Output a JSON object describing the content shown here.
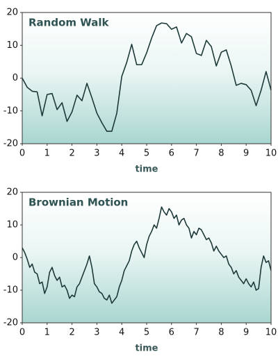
{
  "chart_data": [
    {
      "type": "line",
      "title": "Random Walk",
      "x_label": "time",
      "color": "#1d3838",
      "x": [
        0,
        0.2,
        0.4,
        0.6,
        0.8,
        1,
        1.2,
        1.4,
        1.6,
        1.8,
        2,
        2.2,
        2.4,
        2.6,
        2.8,
        3,
        3.2,
        3.4,
        3.6,
        3.8,
        4,
        4.2,
        4.4,
        4.6,
        4.8,
        5,
        5.2,
        5.4,
        5.6,
        5.8,
        6,
        6.2,
        6.4,
        6.6,
        6.8,
        7,
        7.2,
        7.4,
        7.6,
        7.8,
        8,
        8.2,
        8.4,
        8.6,
        8.8,
        9,
        9.2,
        9.4,
        9.6,
        9.8,
        10
      ],
      "values": [
        0,
        -2.8,
        -4,
        -4.2,
        -11.5,
        -5,
        -4.7,
        -9.6,
        -7.5,
        -13.2,
        -10.3,
        -5.2,
        -6.9,
        -1.6,
        -6,
        -10.7,
        -13.6,
        -16.2,
        -16.2,
        -10.7,
        0.5,
        4.8,
        10.3,
        4.1,
        4.1,
        7.7,
        12.2,
        16,
        16.8,
        16.6,
        14.9,
        15.6,
        10.7,
        13.6,
        12.6,
        7.5,
        6.9,
        11.5,
        9.6,
        3.7,
        7.9,
        8.6,
        3.7,
        -2.2,
        -1.6,
        -2,
        -3.7,
        -8.4,
        -3.7,
        2,
        -3.7
      ],
      "xlim": [
        0,
        10
      ],
      "ylim": [
        -20,
        20
      ],
      "xticks": [
        0,
        1,
        2,
        3,
        4,
        5,
        6,
        7,
        8,
        9,
        10
      ],
      "yticks": [
        -20,
        -10,
        0,
        10,
        20
      ]
    },
    {
      "type": "line",
      "title": "Brownian Motion",
      "x_label": "time",
      "color": "#1d3838",
      "x": [
        0,
        0.1,
        0.2,
        0.3,
        0.4,
        0.5,
        0.6,
        0.7,
        0.8,
        0.9,
        1,
        1.1,
        1.2,
        1.3,
        1.4,
        1.5,
        1.6,
        1.7,
        1.8,
        1.9,
        2,
        2.1,
        2.2,
        2.3,
        2.4,
        2.5,
        2.6,
        2.7,
        2.8,
        2.9,
        3,
        3.1,
        3.2,
        3.3,
        3.4,
        3.5,
        3.6,
        3.7,
        3.8,
        3.9,
        4,
        4.1,
        4.2,
        4.3,
        4.4,
        4.5,
        4.6,
        4.7,
        4.8,
        4.9,
        5,
        5.1,
        5.2,
        5.3,
        5.4,
        5.5,
        5.6,
        5.7,
        5.8,
        5.9,
        6,
        6.1,
        6.2,
        6.3,
        6.4,
        6.5,
        6.6,
        6.7,
        6.8,
        6.9,
        7,
        7.1,
        7.2,
        7.3,
        7.4,
        7.5,
        7.6,
        7.7,
        7.8,
        7.9,
        8,
        8.1,
        8.2,
        8.3,
        8.4,
        8.5,
        8.6,
        8.7,
        8.8,
        8.9,
        9,
        9.1,
        9.2,
        9.3,
        9.4,
        9.5,
        9.6,
        9.7,
        9.8,
        9.9,
        10
      ],
      "values": [
        3,
        1.5,
        -0.5,
        -3,
        -2,
        -4.5,
        -5,
        -8,
        -7.5,
        -11,
        -9,
        -4.5,
        -3,
        -5.5,
        -7,
        -6,
        -9,
        -8.5,
        -10,
        -12.5,
        -11.5,
        -12,
        -9,
        -8,
        -6,
        -4,
        -2,
        0.5,
        -3,
        -8,
        -9,
        -10.5,
        -11,
        -12.5,
        -13,
        -11.5,
        -14,
        -13,
        -12,
        -9,
        -7,
        -4,
        -2.5,
        -1,
        2,
        4,
        5,
        3,
        1.5,
        0,
        4,
        6.5,
        8,
        10,
        9,
        12,
        15.5,
        14,
        13,
        15,
        14,
        12,
        13,
        10,
        11.5,
        12,
        10,
        9,
        6,
        8,
        7,
        9,
        8.5,
        7,
        5.5,
        6,
        4.5,
        2,
        3.5,
        2,
        1,
        0,
        0.5,
        -2,
        -3,
        -5,
        -4,
        -6,
        -7,
        -8,
        -6.5,
        -8,
        -9,
        -7.5,
        -10,
        -9.5,
        -3,
        0.5,
        -1.5,
        -1,
        -4
      ],
      "xlim": [
        0,
        10
      ],
      "ylim": [
        -20,
        20
      ],
      "xticks": [
        0,
        1,
        2,
        3,
        4,
        5,
        6,
        7,
        8,
        9,
        10
      ],
      "yticks": [
        -20,
        -10,
        0,
        10,
        20
      ]
    }
  ]
}
